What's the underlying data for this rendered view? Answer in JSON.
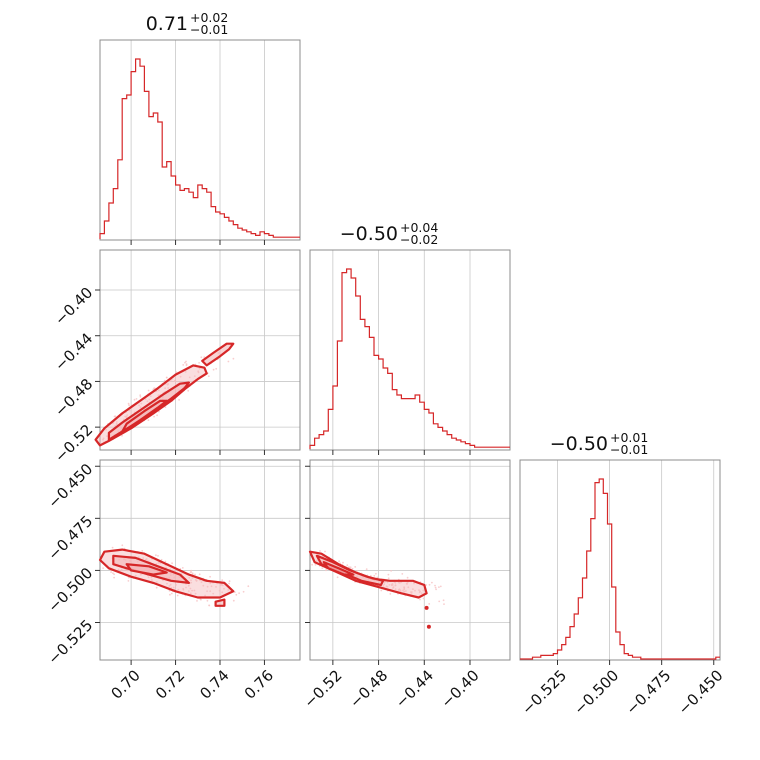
{
  "chart_data": {
    "type": "corner",
    "color": "#d62728",
    "fill_color": "#f4b6b8",
    "scatter_color": "#f7c6c7",
    "grid": true,
    "parameters": [
      {
        "index": 0,
        "range": [
          0.686,
          0.776
        ],
        "ticks": [
          0.7,
          0.72,
          0.74,
          0.76
        ],
        "tick_labels": [
          "0.70",
          "0.72",
          "0.74",
          "0.76"
        ],
        "title_median": "0.71",
        "title_plus": "+0.02",
        "title_minus": "−0.01",
        "hist_bins": [
          0.686,
          0.688,
          0.69,
          0.692,
          0.694,
          0.696,
          0.698,
          0.7,
          0.702,
          0.704,
          0.706,
          0.708,
          0.71,
          0.712,
          0.714,
          0.716,
          0.718,
          0.72,
          0.722,
          0.724,
          0.726,
          0.728,
          0.73,
          0.732,
          0.734,
          0.736,
          0.738,
          0.74,
          0.742,
          0.744,
          0.746,
          0.748,
          0.75,
          0.752,
          0.754,
          0.756,
          0.758,
          0.76,
          0.762,
          0.764,
          0.766,
          0.768,
          0.77,
          0.772,
          0.774,
          0.776
        ],
        "hist_counts": [
          3,
          10,
          20,
          28,
          44,
          78,
          80,
          93,
          100,
          96,
          82,
          68,
          70,
          65,
          40,
          43,
          35,
          30,
          27,
          28,
          26,
          23,
          30,
          28,
          26,
          18,
          15,
          14,
          12,
          10,
          8,
          6,
          5,
          4,
          3,
          2,
          4,
          3,
          2,
          1,
          1,
          1,
          1,
          1,
          1
        ]
      },
      {
        "index": 1,
        "range": [
          -0.54,
          -0.365
        ],
        "ticks": [
          -0.52,
          -0.48,
          -0.44,
          -0.4
        ],
        "tick_labels": [
          "−0.52",
          "−0.48",
          "−0.44",
          "−0.40"
        ],
        "title_median": "−0.50",
        "title_plus": "+0.04",
        "title_minus": "−0.02",
        "hist_bins": [
          -0.54,
          -0.536,
          -0.532,
          -0.528,
          -0.524,
          -0.52,
          -0.516,
          -0.512,
          -0.508,
          -0.504,
          -0.5,
          -0.496,
          -0.492,
          -0.488,
          -0.484,
          -0.48,
          -0.476,
          -0.472,
          -0.468,
          -0.464,
          -0.46,
          -0.456,
          -0.452,
          -0.448,
          -0.444,
          -0.44,
          -0.436,
          -0.432,
          -0.428,
          -0.424,
          -0.42,
          -0.416,
          -0.412,
          -0.408,
          -0.404,
          -0.4,
          -0.396,
          -0.392,
          -0.388,
          -0.384,
          -0.38,
          -0.376,
          -0.372,
          -0.368,
          -0.365
        ],
        "hist_counts": [
          2,
          6,
          8,
          10,
          22,
          35,
          60,
          98,
          100,
          95,
          85,
          72,
          68,
          62,
          52,
          50,
          45,
          42,
          33,
          30,
          28,
          28,
          28,
          30,
          26,
          22,
          20,
          14,
          12,
          10,
          8,
          6,
          5,
          4,
          3,
          2,
          1,
          1,
          1,
          1,
          1,
          1,
          1,
          1
        ]
      },
      {
        "index": 2,
        "range": [
          -0.543,
          -0.447
        ],
        "ticks": [
          -0.525,
          -0.5,
          -0.475,
          -0.45
        ],
        "tick_labels": [
          "−0.525",
          "−0.500",
          "−0.475",
          "−0.450"
        ],
        "title_median": "−0.50",
        "title_plus": "+0.01",
        "title_minus": "−0.01",
        "hist_bins": [
          -0.543,
          -0.541,
          -0.539,
          -0.537,
          -0.535,
          -0.533,
          -0.531,
          -0.529,
          -0.527,
          -0.525,
          -0.523,
          -0.521,
          -0.519,
          -0.517,
          -0.515,
          -0.513,
          -0.511,
          -0.509,
          -0.507,
          -0.505,
          -0.503,
          -0.501,
          -0.499,
          -0.497,
          -0.495,
          -0.493,
          -0.491,
          -0.489,
          -0.487,
          -0.485,
          -0.483,
          -0.481,
          -0.479,
          -0.477,
          -0.475,
          -0.473,
          -0.471,
          -0.469,
          -0.467,
          -0.465,
          -0.463,
          -0.461,
          -0.459,
          -0.457,
          -0.455,
          -0.453,
          -0.451,
          -0.449,
          -0.447
        ],
        "hist_counts": [
          0,
          0,
          0,
          1,
          1,
          2,
          2,
          2,
          3,
          5,
          8,
          12,
          18,
          25,
          34,
          45,
          60,
          78,
          98,
          100,
          92,
          75,
          40,
          15,
          8,
          3,
          2,
          1,
          1,
          0,
          0,
          0,
          0,
          0,
          0,
          0,
          0,
          0,
          0,
          0,
          0,
          0,
          0,
          0,
          0,
          0,
          0,
          1
        ]
      }
    ],
    "panels_2d": [
      {
        "x_param": 0,
        "y_param": 1,
        "contours": [
          [
            [
              0.686,
              -0.536
            ],
            [
              0.69,
              -0.532
            ],
            [
              0.7,
              -0.521
            ],
            [
              0.71,
              -0.508
            ],
            [
              0.718,
              -0.497
            ],
            [
              0.724,
              -0.487
            ],
            [
              0.73,
              -0.478
            ],
            [
              0.734,
              -0.473
            ],
            [
              0.733,
              -0.468
            ],
            [
              0.728,
              -0.466
            ],
            [
              0.72,
              -0.474
            ],
            [
              0.712,
              -0.486
            ],
            [
              0.704,
              -0.497
            ],
            [
              0.696,
              -0.508
            ],
            [
              0.688,
              -0.521
            ],
            [
              0.684,
              -0.531
            ]
          ],
          [
            [
              0.69,
              -0.531
            ],
            [
              0.7,
              -0.519
            ],
            [
              0.71,
              -0.506
            ],
            [
              0.718,
              -0.495
            ],
            [
              0.724,
              -0.486
            ],
            [
              0.726,
              -0.481
            ],
            [
              0.722,
              -0.482
            ],
            [
              0.714,
              -0.492
            ],
            [
              0.705,
              -0.504
            ],
            [
              0.696,
              -0.516
            ],
            [
              0.69,
              -0.525
            ]
          ],
          [
            [
              0.696,
              -0.524
            ],
            [
              0.704,
              -0.514
            ],
            [
              0.712,
              -0.503
            ],
            [
              0.716,
              -0.497
            ],
            [
              0.713,
              -0.497
            ],
            [
              0.706,
              -0.506
            ],
            [
              0.698,
              -0.517
            ]
          ],
          [
            [
              0.734,
              -0.466
            ],
            [
              0.74,
              -0.458
            ],
            [
              0.744,
              -0.452
            ],
            [
              0.746,
              -0.447
            ],
            [
              0.743,
              -0.447
            ],
            [
              0.737,
              -0.455
            ],
            [
              0.732,
              -0.462
            ]
          ]
        ]
      },
      {
        "x_param": 0,
        "y_param": 2,
        "contours": [
          [
            [
              0.688,
              -0.491
            ],
            [
              0.696,
              -0.49
            ],
            [
              0.706,
              -0.492
            ],
            [
              0.716,
              -0.497
            ],
            [
              0.726,
              -0.502
            ],
            [
              0.734,
              -0.505
            ],
            [
              0.742,
              -0.506
            ],
            [
              0.746,
              -0.51
            ],
            [
              0.74,
              -0.513
            ],
            [
              0.73,
              -0.513
            ],
            [
              0.72,
              -0.51
            ],
            [
              0.71,
              -0.506
            ],
            [
              0.7,
              -0.503
            ],
            [
              0.69,
              -0.499
            ],
            [
              0.686,
              -0.495
            ]
          ],
          [
            [
              0.692,
              -0.493
            ],
            [
              0.702,
              -0.494
            ],
            [
              0.712,
              -0.498
            ],
            [
              0.722,
              -0.502
            ],
            [
              0.726,
              -0.506
            ],
            [
              0.718,
              -0.505
            ],
            [
              0.708,
              -0.502
            ],
            [
              0.698,
              -0.499
            ],
            [
              0.692,
              -0.497
            ]
          ],
          [
            [
              0.698,
              -0.497
            ],
            [
              0.708,
              -0.498
            ],
            [
              0.716,
              -0.501
            ],
            [
              0.71,
              -0.502
            ],
            [
              0.7,
              -0.5
            ]
          ],
          [
            [
              0.738,
              -0.515
            ],
            [
              0.742,
              -0.514
            ],
            [
              0.742,
              -0.517
            ],
            [
              0.738,
              -0.517
            ]
          ]
        ]
      },
      {
        "x_param": 1,
        "y_param": 2,
        "contours": [
          [
            [
              -0.54,
              -0.491
            ],
            [
              -0.53,
              -0.492
            ],
            [
              -0.515,
              -0.497
            ],
            [
              -0.5,
              -0.501
            ],
            [
              -0.485,
              -0.504
            ],
            [
              -0.47,
              -0.505
            ],
            [
              -0.45,
              -0.505
            ],
            [
              -0.44,
              -0.507
            ],
            [
              -0.438,
              -0.511
            ],
            [
              -0.445,
              -0.513
            ],
            [
              -0.46,
              -0.511
            ],
            [
              -0.48,
              -0.508
            ],
            [
              -0.5,
              -0.505
            ],
            [
              -0.52,
              -0.5
            ],
            [
              -0.536,
              -0.496
            ]
          ],
          [
            [
              -0.534,
              -0.493
            ],
            [
              -0.52,
              -0.496
            ],
            [
              -0.505,
              -0.5
            ],
            [
              -0.49,
              -0.503
            ],
            [
              -0.476,
              -0.505
            ],
            [
              -0.478,
              -0.507
            ],
            [
              -0.495,
              -0.505
            ],
            [
              -0.512,
              -0.501
            ],
            [
              -0.53,
              -0.497
            ]
          ],
          [
            [
              -0.528,
              -0.496
            ],
            [
              -0.515,
              -0.499
            ],
            [
              -0.502,
              -0.502
            ],
            [
              -0.51,
              -0.502
            ],
            [
              -0.524,
              -0.499
            ]
          ]
        ],
        "markers": [
          [
            -0.438,
            -0.518
          ],
          [
            -0.436,
            -0.527
          ]
        ]
      }
    ]
  }
}
